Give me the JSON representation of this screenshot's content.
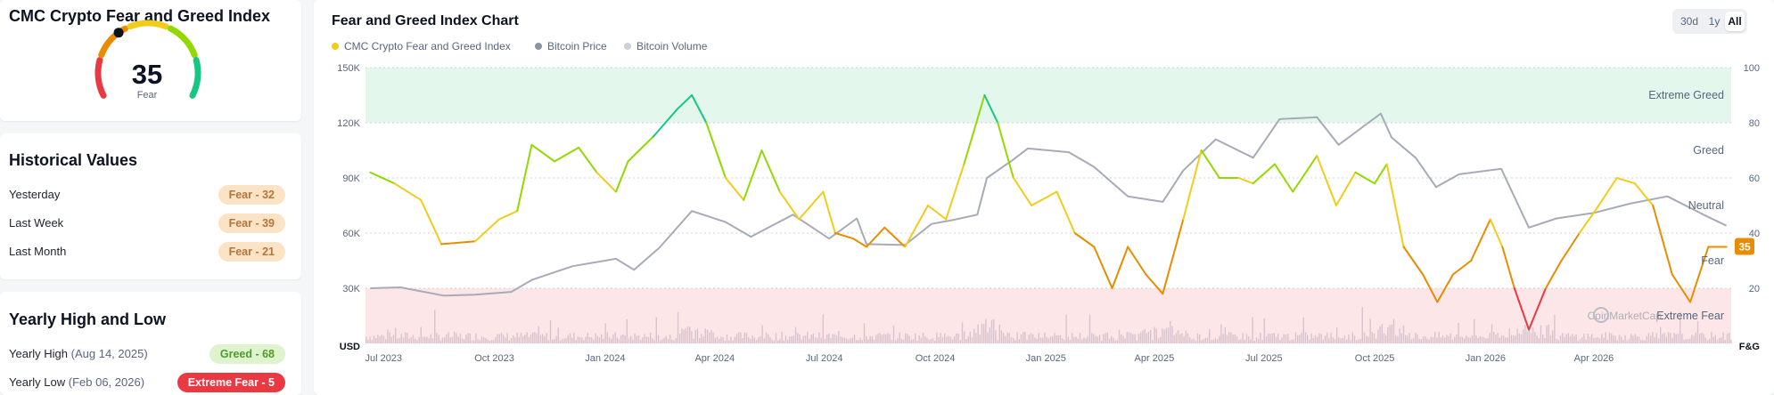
{
  "gauge": {
    "title": "CMC Crypto Fear and Greed Index",
    "value": "35",
    "label": "Fear",
    "level": 35
  },
  "historical": {
    "title": "Historical Values",
    "rows": [
      {
        "label": "Yesterday",
        "badge": "Fear - 32"
      },
      {
        "label": "Last Week",
        "badge": "Fear - 39"
      },
      {
        "label": "Last Month",
        "badge": "Fear - 21"
      }
    ]
  },
  "yearly": {
    "title": "Yearly High and Low",
    "high": {
      "label": "Yearly High",
      "date": "(Aug 14, 2025)",
      "badge": "Greed - 68"
    },
    "low": {
      "label": "Yearly Low",
      "date": "(Feb 06, 2026)",
      "badge": "Extreme Fear - 5"
    }
  },
  "chart": {
    "title": "Fear and Greed Index Chart",
    "ranges": [
      "30d",
      "1y",
      "All"
    ],
    "active_range": "All",
    "legend": [
      {
        "name": "CMC Crypto Fear and Greed Index",
        "color": "#f2cc1a"
      },
      {
        "name": "Bitcoin Price",
        "color": "#8d93a5"
      },
      {
        "name": "Bitcoin Volume",
        "color": "#cdd0d8"
      }
    ],
    "colors": {
      "extreme_fear": "#ea3943",
      "fear": "#ea8c00",
      "neutral": "#f2cc1a",
      "greed": "#93d900",
      "extreme_greed": "#16c784",
      "price": "#a7abb8",
      "volume": "#d8c4cc"
    },
    "watermark": "CoinMarketCap",
    "current_badge": "35"
  },
  "chart_data": {
    "type": "line",
    "title": "Fear and Greed Index Chart",
    "x_ticks": [
      "Jul 2023",
      "Oct 2023",
      "Jan 2024",
      "Apr 2024",
      "Jul 2024",
      "Oct 2024",
      "Jan 2025",
      "Apr 2025",
      "Jul 2025",
      "Oct 2025",
      "Jan 2026",
      "Apr 2026"
    ],
    "y_left": {
      "unit": "USD",
      "ticks": [
        "30K",
        "60K",
        "90K",
        "120K",
        "150K"
      ],
      "range": [
        0,
        150000
      ]
    },
    "y_right": {
      "unit": "F&G",
      "ticks": [
        "20",
        "40",
        "60",
        "80",
        "100"
      ],
      "range": [
        0,
        100
      ]
    },
    "zones": [
      {
        "name": "Extreme Greed",
        "from": 80,
        "to": 100
      },
      {
        "name": "Greed",
        "from": 60,
        "to": 80
      },
      {
        "name": "Neutral",
        "from": 40,
        "to": 60
      },
      {
        "name": "Fear",
        "from": 20,
        "to": 40
      },
      {
        "name": "Extreme Fear",
        "from": 0,
        "to": 20
      }
    ],
    "fg_index": {
      "name": "CMC Crypto Fear and Greed Index",
      "x": [
        "2023-06-20",
        "2023-07-10",
        "2023-08-01",
        "2023-08-18",
        "2023-09-15",
        "2023-10-05",
        "2023-10-20",
        "2023-11-01",
        "2023-11-20",
        "2023-12-10",
        "2023-12-25",
        "2024-01-10",
        "2024-01-20",
        "2024-02-10",
        "2024-03-01",
        "2024-03-13",
        "2024-03-25",
        "2024-04-10",
        "2024-04-25",
        "2024-05-10",
        "2024-05-25",
        "2024-06-10",
        "2024-06-30",
        "2024-07-10",
        "2024-07-25",
        "2024-08-05",
        "2024-08-20",
        "2024-09-06",
        "2024-09-25",
        "2024-10-10",
        "2024-10-25",
        "2024-11-11",
        "2024-11-22",
        "2024-12-05",
        "2024-12-20",
        "2025-01-10",
        "2025-01-25",
        "2025-02-10",
        "2025-02-25",
        "2025-03-10",
        "2025-03-25",
        "2025-04-08",
        "2025-04-25",
        "2025-05-10",
        "2025-05-25",
        "2025-06-10",
        "2025-06-22",
        "2025-07-10",
        "2025-07-25",
        "2025-08-14",
        "2025-08-30",
        "2025-09-15",
        "2025-10-01",
        "2025-10-11",
        "2025-10-25",
        "2025-11-10",
        "2025-11-22",
        "2025-12-05",
        "2025-12-20",
        "2026-01-05",
        "2026-01-15",
        "2026-01-25",
        "2026-02-06",
        "2026-02-20",
        "2026-03-05",
        "2026-03-20",
        "2026-04-05",
        "2026-04-20",
        "2026-05-05",
        "2026-05-20",
        "2026-06-05",
        "2026-06-20",
        "2026-07-05",
        "2026-07-20"
      ],
      "values": [
        62,
        58,
        52,
        36,
        37,
        45,
        48,
        72,
        66,
        71,
        62,
        55,
        66,
        75,
        85,
        90,
        80,
        60,
        52,
        70,
        55,
        45,
        55,
        40,
        38,
        35,
        42,
        35,
        50,
        45,
        65,
        90,
        80,
        60,
        50,
        55,
        40,
        35,
        20,
        35,
        25,
        18,
        45,
        70,
        60,
        60,
        58,
        65,
        55,
        68,
        50,
        62,
        58,
        65,
        35,
        25,
        15,
        25,
        30,
        45,
        35,
        20,
        5,
        20,
        30,
        40,
        50,
        60,
        58,
        50,
        25,
        15,
        35,
        35
      ]
    },
    "btc_price": {
      "name": "Bitcoin Price",
      "x": [
        "2023-06-20",
        "2023-07-15",
        "2023-08-20",
        "2023-09-15",
        "2023-10-15",
        "2023-11-01",
        "2023-12-05",
        "2024-01-10",
        "2024-01-25",
        "2024-02-15",
        "2024-03-13",
        "2024-04-10",
        "2024-05-01",
        "2024-06-05",
        "2024-07-05",
        "2024-07-28",
        "2024-08-05",
        "2024-09-06",
        "2024-09-28",
        "2024-10-15",
        "2024-11-05",
        "2024-11-13",
        "2024-12-05",
        "2024-12-17",
        "2025-01-20",
        "2025-02-10",
        "2025-03-10",
        "2025-04-08",
        "2025-04-25",
        "2025-05-22",
        "2025-06-22",
        "2025-07-14",
        "2025-08-14",
        "2025-09-01",
        "2025-10-06",
        "2025-10-15",
        "2025-11-04",
        "2025-11-21",
        "2025-12-10",
        "2026-01-14",
        "2026-02-06",
        "2026-03-01",
        "2026-04-01",
        "2026-05-01",
        "2026-06-01",
        "2026-07-01",
        "2026-07-20"
      ],
      "values": [
        30000,
        30500,
        26000,
        26500,
        28000,
        34500,
        42000,
        46000,
        40000,
        52000,
        72000,
        66000,
        58000,
        70000,
        57000,
        68000,
        54000,
        53500,
        65000,
        67000,
        70000,
        90000,
        100000,
        106000,
        104000,
        96000,
        80000,
        77000,
        94000,
        111000,
        101000,
        122000,
        123000,
        108000,
        125000,
        112000,
        101000,
        85000,
        92000,
        95000,
        63000,
        68000,
        71000,
        76000,
        80000,
        70000,
        64000
      ]
    },
    "btc_volume": {
      "name": "Bitcoin Volume",
      "note": "daily volume bars, no printed values"
    }
  }
}
